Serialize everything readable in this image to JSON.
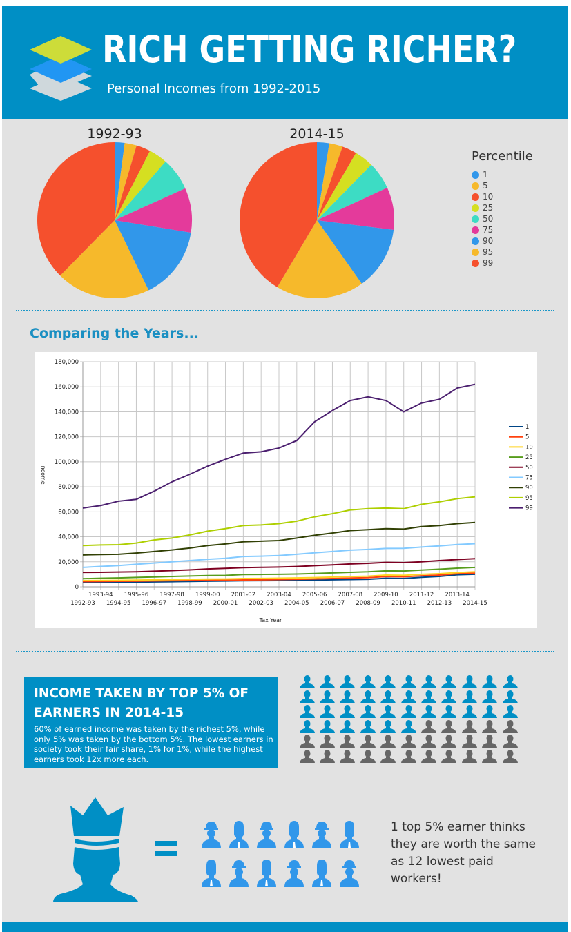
{
  "header": {
    "title": "RICH GETTING RICHER?",
    "subtitle": "Personal Incomes from 1992-2015"
  },
  "pies": {
    "legend_title": "Percentile",
    "labels": [
      "1",
      "5",
      "10",
      "25",
      "50",
      "75",
      "90",
      "95",
      "99"
    ],
    "colors": [
      "#3197ea",
      "#f6b92b",
      "#f5502d",
      "#d5df21",
      "#3ddcc4",
      "#e43a9b",
      "#3197ea",
      "#f6b92b",
      "#f5502d"
    ],
    "charts": [
      {
        "title": "1992-93",
        "values": [
          3500,
          4200,
          5000,
          6500,
          11500,
          15500,
          25500,
          33000,
          63000
        ]
      },
      {
        "title": "2014-15",
        "values": [
          10000,
          11000,
          12000,
          15500,
          22500,
          34500,
          51500,
          72000,
          162000
        ]
      }
    ]
  },
  "section_heading": "Comparing the Years...",
  "chart_data": {
    "type": "line",
    "xlabel": "Tax Year",
    "ylabel": "Income",
    "ylim": [
      0,
      180000
    ],
    "yticks": [
      0,
      20000,
      40000,
      60000,
      80000,
      100000,
      120000,
      140000,
      160000,
      180000
    ],
    "ytick_labels": [
      "0",
      "20,000",
      "40,000",
      "60,000",
      "80,000",
      "100,000",
      "120,000",
      "140,000",
      "160,000",
      "180,000"
    ],
    "grid": true,
    "legend": "right",
    "x": [
      "1992-93",
      "1993-94",
      "1994-95",
      "1995-96",
      "1996-97",
      "1997-98",
      "1998-99",
      "1999-00",
      "2000-01",
      "2001-02",
      "2002-03",
      "2003-04",
      "2004-05",
      "2005-06",
      "2006-07",
      "2007-08",
      "2008-09",
      "2009-10",
      "2010-11",
      "2011-12",
      "2012-13",
      "2013-14",
      "2014-15"
    ],
    "series": [
      {
        "name": "1",
        "color": "#004586",
        "values": [
          3500,
          3500,
          3600,
          3700,
          3900,
          4100,
          4300,
          4500,
          4600,
          4800,
          4900,
          5000,
          5200,
          5400,
          5600,
          5800,
          6000,
          6800,
          6600,
          7600,
          8300,
          9600,
          10000
        ]
      },
      {
        "name": "5",
        "color": "#ff420e",
        "values": [
          4200,
          4300,
          4400,
          4500,
          4700,
          4900,
          5000,
          5200,
          5300,
          5500,
          5600,
          5800,
          6000,
          6300,
          6600,
          7000,
          7300,
          8200,
          8000,
          8800,
          9400,
          10400,
          11000
        ]
      },
      {
        "name": "10",
        "color": "#ffd320",
        "values": [
          5000,
          5100,
          5200,
          5400,
          5600,
          5800,
          6000,
          6200,
          6300,
          6600,
          6700,
          6900,
          7100,
          7400,
          7800,
          8200,
          8500,
          9400,
          9200,
          10000,
          10500,
          11400,
          12000
        ]
      },
      {
        "name": "25",
        "color": "#579d1c",
        "values": [
          6500,
          6800,
          7100,
          7500,
          7900,
          8300,
          8600,
          9000,
          9100,
          9800,
          9900,
          10000,
          10200,
          10600,
          11100,
          11600,
          12000,
          12800,
          12600,
          13400,
          14100,
          14900,
          15500
        ]
      },
      {
        "name": "50",
        "color": "#7e0021",
        "values": [
          11500,
          11600,
          11800,
          12000,
          12500,
          13000,
          13500,
          14300,
          14800,
          15300,
          15600,
          15800,
          16200,
          16900,
          17500,
          18300,
          18800,
          19500,
          19300,
          20000,
          21000,
          21800,
          22500
        ]
      },
      {
        "name": "75",
        "color": "#83caff",
        "values": [
          15500,
          16300,
          17000,
          18000,
          19000,
          20000,
          21000,
          22000,
          22800,
          24200,
          24500,
          25000,
          26000,
          27200,
          28200,
          29300,
          29900,
          30700,
          30800,
          31800,
          32700,
          33800,
          34500
        ]
      },
      {
        "name": "90",
        "color": "#314004",
        "values": [
          25500,
          25800,
          26000,
          27000,
          28200,
          29500,
          31000,
          33000,
          34300,
          36000,
          36500,
          37000,
          39000,
          41200,
          43000,
          45000,
          45700,
          46500,
          46200,
          48200,
          49000,
          50500,
          51500
        ]
      },
      {
        "name": "95",
        "color": "#aecf00",
        "values": [
          33000,
          33500,
          33700,
          35000,
          37500,
          39000,
          41500,
          44500,
          46500,
          49000,
          49500,
          50500,
          52500,
          56000,
          58500,
          61500,
          62500,
          63000,
          62500,
          66000,
          68000,
          70500,
          72000
        ]
      },
      {
        "name": "99",
        "color": "#4b1f6f",
        "values": [
          63000,
          65000,
          68500,
          70000,
          76500,
          84000,
          90000,
          96500,
          102000,
          107000,
          108000,
          111000,
          117000,
          132000,
          141000,
          149000,
          152000,
          149000,
          140000,
          147000,
          150000,
          159000,
          162000
        ]
      }
    ]
  },
  "info": {
    "heading": "INCOME TAKEN BY TOP 5% OF EARNERS IN 2014-15",
    "body": "60% of earned income was taken by the richest 5%, while only 5% was taken by the bottom 5%. The lowest earners in society took their fair share, 1% for 1%, while the highest earners took 12x more each."
  },
  "people_grid": {
    "total": 66,
    "highlighted": 39,
    "highlight_color": "#008fc5",
    "other_color": "#666666"
  },
  "comparison": {
    "workers": [
      "hardhat",
      "tie",
      "hardhat",
      "tie",
      "hardhat",
      "tie",
      "tie",
      "hardhat",
      "tie",
      "hardhat",
      "tie",
      "hardhat"
    ],
    "claim": "1 top 5% earner thinks they are worth the same as 12 lowest paid workers!"
  },
  "colors": {
    "brand": "#008fc5",
    "background": "#e2e2e2"
  }
}
